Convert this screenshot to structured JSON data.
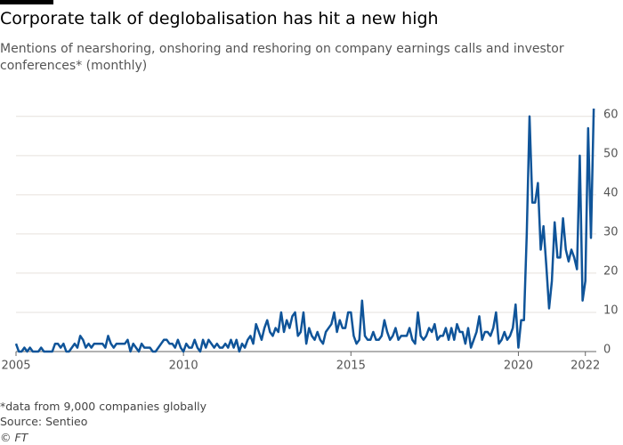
{
  "chart_data": {
    "type": "line",
    "title": "Corporate talk of deglobalisation has hit a new high",
    "subtitle": "Mentions of nearshoring, onshoring and reshoring on company earnings calls and investor conferences* (monthly)",
    "note": "*data from 9,000 companies globally",
    "source": "Source: Sentieo",
    "credit": "© FT",
    "xlim": [
      2005,
      2022.3
    ],
    "xticks": [
      2005,
      2010,
      2015,
      2020,
      2022
    ],
    "ylim": [
      0,
      62
    ],
    "yticks": [
      0,
      10,
      20,
      30,
      40,
      50,
      60
    ],
    "grid": true,
    "series": [
      {
        "color": "#0f5499",
        "x": [
          2005,
          2005.083,
          2005.167,
          2005.25,
          2005.333,
          2005.417,
          2005.5,
          2005.583,
          2005.667,
          2005.75,
          2005.833,
          2005.917,
          2006,
          2006.083,
          2006.167,
          2006.25,
          2006.333,
          2006.417,
          2006.5,
          2006.583,
          2006.667,
          2006.75,
          2006.833,
          2006.917,
          2007,
          2007.083,
          2007.167,
          2007.25,
          2007.333,
          2007.417,
          2007.5,
          2007.583,
          2007.667,
          2007.75,
          2007.833,
          2007.917,
          2008,
          2008.083,
          2008.167,
          2008.25,
          2008.333,
          2008.417,
          2008.5,
          2008.583,
          2008.667,
          2008.75,
          2008.833,
          2008.917,
          2009,
          2009.083,
          2009.167,
          2009.25,
          2009.333,
          2009.417,
          2009.5,
          2009.583,
          2009.667,
          2009.75,
          2009.833,
          2009.917,
          2010,
          2010.083,
          2010.167,
          2010.25,
          2010.333,
          2010.417,
          2010.5,
          2010.583,
          2010.667,
          2010.75,
          2010.833,
          2010.917,
          2011,
          2011.083,
          2011.167,
          2011.25,
          2011.333,
          2011.417,
          2011.5,
          2011.583,
          2011.667,
          2011.75,
          2011.833,
          2011.917,
          2012,
          2012.083,
          2012.167,
          2012.25,
          2012.333,
          2012.417,
          2012.5,
          2012.583,
          2012.667,
          2012.75,
          2012.833,
          2012.917,
          2013,
          2013.083,
          2013.167,
          2013.25,
          2013.333,
          2013.417,
          2013.5,
          2013.583,
          2013.667,
          2013.75,
          2013.833,
          2013.917,
          2014,
          2014.083,
          2014.167,
          2014.25,
          2014.333,
          2014.417,
          2014.5,
          2014.583,
          2014.667,
          2014.75,
          2014.833,
          2014.917,
          2015,
          2015.083,
          2015.167,
          2015.25,
          2015.333,
          2015.417,
          2015.5,
          2015.583,
          2015.667,
          2015.75,
          2015.833,
          2015.917,
          2016,
          2016.083,
          2016.167,
          2016.25,
          2016.333,
          2016.417,
          2016.5,
          2016.583,
          2016.667,
          2016.75,
          2016.833,
          2016.917,
          2017,
          2017.083,
          2017.167,
          2017.25,
          2017.333,
          2017.417,
          2017.5,
          2017.583,
          2017.667,
          2017.75,
          2017.833,
          2017.917,
          2018,
          2018.083,
          2018.167,
          2018.25,
          2018.333,
          2018.417,
          2018.5,
          2018.583,
          2018.667,
          2018.75,
          2018.833,
          2018.917,
          2019,
          2019.083,
          2019.167,
          2019.25,
          2019.333,
          2019.417,
          2019.5,
          2019.583,
          2019.667,
          2019.75,
          2019.833,
          2019.917,
          2020,
          2020.083,
          2020.167,
          2020.25,
          2020.333,
          2020.417,
          2020.5,
          2020.583,
          2020.667,
          2020.75,
          2020.833,
          2020.917,
          2021,
          2021.083,
          2021.167,
          2021.25,
          2021.333,
          2021.417,
          2021.5,
          2021.583,
          2021.667,
          2021.75,
          2021.833,
          2021.917,
          2022,
          2022.083,
          2022.167,
          2022.25
        ],
        "values": [
          2,
          0,
          0,
          1,
          0,
          1,
          0,
          0,
          0,
          1,
          0,
          0,
          0,
          0,
          2,
          2,
          1,
          2,
          0,
          0,
          1,
          2,
          1,
          4,
          3,
          1,
          2,
          1,
          2,
          2,
          2,
          2,
          1,
          4,
          2,
          1,
          2,
          2,
          2,
          2,
          3,
          0,
          2,
          1,
          0,
          2,
          1,
          1,
          1,
          0,
          0,
          1,
          2,
          3,
          3,
          2,
          2,
          1,
          3,
          1,
          0,
          2,
          1,
          1,
          3,
          1,
          0,
          3,
          1,
          3,
          2,
          1,
          2,
          1,
          1,
          2,
          1,
          3,
          1,
          3,
          0,
          2,
          1,
          3,
          4,
          2,
          7,
          5,
          3,
          6,
          8,
          5,
          4,
          6,
          5,
          10,
          5,
          8,
          6,
          9,
          10,
          4,
          5,
          10,
          2,
          6,
          4,
          3,
          5,
          3,
          2,
          5,
          6,
          7,
          10,
          5,
          8,
          6,
          6,
          10,
          10,
          4,
          2,
          3,
          13,
          4,
          3,
          3,
          5,
          3,
          3,
          4,
          8,
          5,
          3,
          4,
          6,
          3,
          4,
          4,
          4,
          6,
          3,
          2,
          10,
          4,
          3,
          4,
          6,
          5,
          7,
          3,
          4,
          4,
          6,
          3,
          6,
          3,
          7,
          5,
          5,
          2,
          6,
          1,
          3,
          5,
          9,
          3,
          5,
          5,
          4,
          6,
          10,
          2,
          3,
          5,
          3,
          4,
          6,
          12,
          1,
          8,
          8,
          30,
          60,
          38,
          38,
          43,
          26,
          32,
          22,
          11,
          18,
          33,
          24,
          24,
          34,
          26,
          23,
          26,
          24,
          21,
          50,
          13,
          18,
          57,
          29,
          62
        ]
      }
    ]
  }
}
